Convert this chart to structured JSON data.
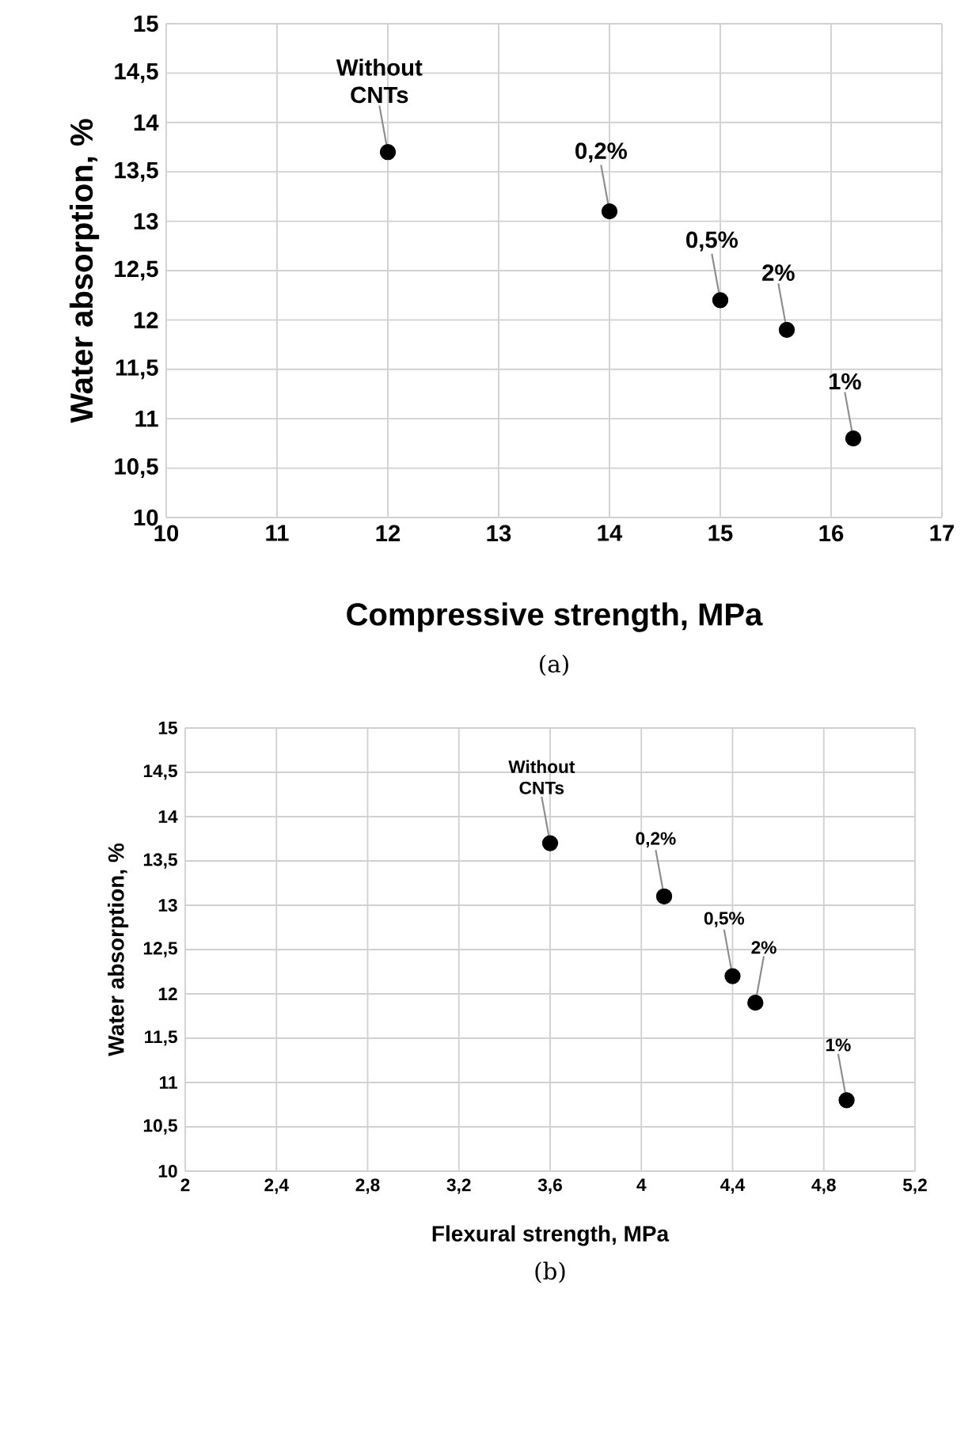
{
  "chart_data": [
    {
      "type": "scatter",
      "xlabel": "Compressive strength, MPa",
      "ylabel": "Water absorption, %",
      "x": [
        12,
        14,
        15,
        15.6,
        16.2
      ],
      "series": [
        {
          "color": "#000000",
          "values": [
            13.7,
            13.1,
            12.2,
            11.9,
            10.8
          ]
        }
      ],
      "marker": "circle",
      "grid": true,
      "xlim": [
        10,
        17
      ],
      "xticks": [
        10,
        11,
        12,
        13,
        14,
        15,
        16,
        17
      ],
      "ylim": [
        10,
        15
      ],
      "yticks": [
        10,
        {
          "value": 10.5,
          "label": "10,5"
        },
        11,
        {
          "value": 11.5,
          "label": "11,5"
        },
        12,
        {
          "value": 12.5,
          "label": "12,5"
        },
        13,
        {
          "value": 13.5,
          "label": "13,5"
        },
        14,
        {
          "value": 14.5,
          "label": "14,5"
        },
        15
      ],
      "annotations": [
        {
          "text": "Without CNTs",
          "x": 12,
          "y": 13.7
        },
        {
          "text": "0,2%",
          "x": 14,
          "y": 13.1
        },
        {
          "text": "0,5%",
          "x": 15,
          "y": 12.2
        },
        {
          "text": "2%",
          "x": 15.6,
          "y": 11.9
        },
        {
          "text": "1%",
          "x": 16.2,
          "y": 10.8
        },
        "(a)"
      ]
    },
    {
      "type": "scatter",
      "xlabel": "Flexural strength, MPa",
      "ylabel": "Water absorption, %",
      "x": [
        3.6,
        4.1,
        4.4,
        4.5,
        4.9
      ],
      "series": [
        {
          "color": "#000000",
          "values": [
            13.7,
            13.1,
            12.2,
            11.9,
            10.8
          ]
        }
      ],
      "marker": "circle",
      "grid": true,
      "xlim": [
        2,
        5.2
      ],
      "xticks": [
        2,
        {
          "value": 2.4,
          "label": "2,4"
        },
        {
          "value": 2.8,
          "label": "2,8"
        },
        {
          "value": 3.2,
          "label": "3,2"
        },
        {
          "value": 3.6,
          "label": "3,6"
        },
        4,
        {
          "value": 4.4,
          "label": "4,4"
        },
        {
          "value": 4.8,
          "label": "4,8"
        },
        {
          "value": 5.2,
          "label": "5,2"
        }
      ],
      "ylim": [
        10,
        15
      ],
      "yticks": [
        10,
        {
          "value": 10.5,
          "label": "10,5"
        },
        11,
        {
          "value": 11.5,
          "label": "11,5"
        },
        12,
        {
          "value": 12.5,
          "label": "12,5"
        },
        13,
        {
          "value": 13.5,
          "label": "13,5"
        },
        14,
        {
          "value": 14.5,
          "label": "14,5"
        },
        15
      ],
      "annotations": [
        {
          "text": "Without CNTs",
          "x": 3.6,
          "y": 13.7
        },
        {
          "text": "0,2%",
          "x": 4.1,
          "y": 13.1
        },
        {
          "text": "0,5%",
          "x": 4.4,
          "y": 12.2
        },
        {
          "text": "2%",
          "x": 4.5,
          "y": 11.9
        },
        {
          "text": "1%",
          "x": 4.9,
          "y": 10.8
        },
        "(b)"
      ]
    }
  ]
}
